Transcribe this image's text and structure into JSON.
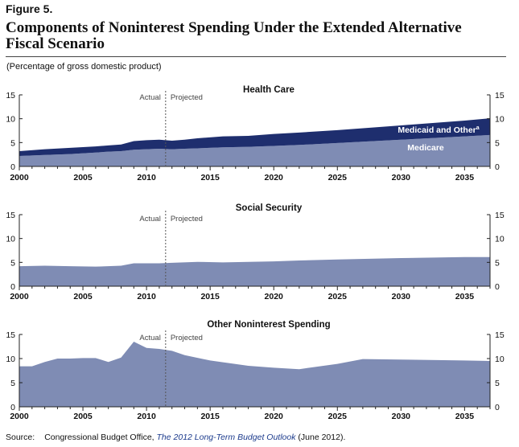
{
  "figure": {
    "label": "Figure 5.",
    "title_line1": "Components of Noninterest Spending Under the Extended Alternative",
    "title_line2": "Fiscal Scenario",
    "subtitle": "(Percentage of gross domestic product)"
  },
  "source": {
    "label": "Source:",
    "text_before": "Congressional Budget Office, ",
    "publication": "The 2012 Long-Term Budget Outlook",
    "text_after": " (June 2012)."
  },
  "colors": {
    "dark_series": "#1e2e6e",
    "light_series": "#7f8cb4",
    "axis": "#222222",
    "divider": "#555555"
  },
  "chart_data": [
    {
      "type": "area",
      "title": "Health Care",
      "stacked": true,
      "ylim": [
        0,
        15
      ],
      "yticks": [
        0,
        5,
        10,
        15
      ],
      "xlim": [
        2000,
        2037
      ],
      "xticks": [
        2000,
        2005,
        2010,
        2015,
        2020,
        2025,
        2030,
        2035
      ],
      "divider_x": 2011.5,
      "divider_labels": {
        "left": "Actual",
        "right": "Projected"
      },
      "x": [
        2000,
        2002,
        2004,
        2006,
        2007,
        2008,
        2009,
        2010,
        2011,
        2012,
        2013,
        2014,
        2016,
        2018,
        2020,
        2022,
        2025,
        2030,
        2035,
        2037
      ],
      "series": [
        {
          "name": "Medicare",
          "label": "Medicare",
          "color_key": "light_series",
          "values": [
            2.2,
            2.4,
            2.6,
            2.9,
            3.1,
            3.2,
            3.5,
            3.6,
            3.7,
            3.6,
            3.7,
            3.8,
            4.0,
            4.1,
            4.3,
            4.5,
            4.9,
            5.6,
            6.3,
            6.6
          ]
        },
        {
          "name": "Medicaid and Other",
          "label": "Medicaid and Other",
          "superscript": "a",
          "color_key": "dark_series",
          "values": [
            1.0,
            1.2,
            1.3,
            1.3,
            1.3,
            1.4,
            1.8,
            1.9,
            1.9,
            1.8,
            1.9,
            2.1,
            2.3,
            2.3,
            2.5,
            2.6,
            2.7,
            3.0,
            3.3,
            3.5
          ]
        }
      ]
    },
    {
      "type": "area",
      "title": "Social Security",
      "ylim": [
        0,
        15
      ],
      "yticks": [
        0,
        5,
        10,
        15
      ],
      "xlim": [
        2000,
        2037
      ],
      "xticks": [
        2000,
        2005,
        2010,
        2015,
        2020,
        2025,
        2030,
        2035
      ],
      "divider_x": 2011.5,
      "divider_labels": {
        "left": "Actual",
        "right": "Projected"
      },
      "x": [
        2000,
        2002,
        2004,
        2006,
        2008,
        2009,
        2010,
        2011,
        2012,
        2014,
        2016,
        2018,
        2020,
        2022,
        2025,
        2030,
        2035,
        2037
      ],
      "series": [
        {
          "name": "Social Security",
          "color_key": "light_series",
          "values": [
            4.2,
            4.3,
            4.2,
            4.1,
            4.3,
            4.8,
            4.8,
            4.8,
            4.9,
            5.1,
            5.0,
            5.1,
            5.2,
            5.4,
            5.6,
            5.9,
            6.1,
            6.1
          ]
        }
      ]
    },
    {
      "type": "area",
      "title": "Other Noninterest Spending",
      "ylim": [
        0,
        15
      ],
      "yticks": [
        0,
        5,
        10,
        15
      ],
      "xlim": [
        2000,
        2037
      ],
      "xticks": [
        2000,
        2005,
        2010,
        2015,
        2020,
        2025,
        2030,
        2035
      ],
      "divider_x": 2011.5,
      "divider_labels": {
        "left": "Actual",
        "right": "Projected"
      },
      "x": [
        2000,
        2001,
        2002,
        2003,
        2004,
        2005,
        2006,
        2007,
        2008,
        2009,
        2010,
        2011,
        2012,
        2013,
        2015,
        2018,
        2020,
        2022,
        2025,
        2027,
        2030,
        2035,
        2037
      ],
      "series": [
        {
          "name": "Other Noninterest Spending",
          "color_key": "light_series",
          "values": [
            8.4,
            8.4,
            9.3,
            10.0,
            10.0,
            10.1,
            10.1,
            9.3,
            10.2,
            13.5,
            12.2,
            12.0,
            11.6,
            10.7,
            9.6,
            8.5,
            8.1,
            7.8,
            8.9,
            9.9,
            9.8,
            9.6,
            9.5
          ]
        }
      ]
    }
  ]
}
